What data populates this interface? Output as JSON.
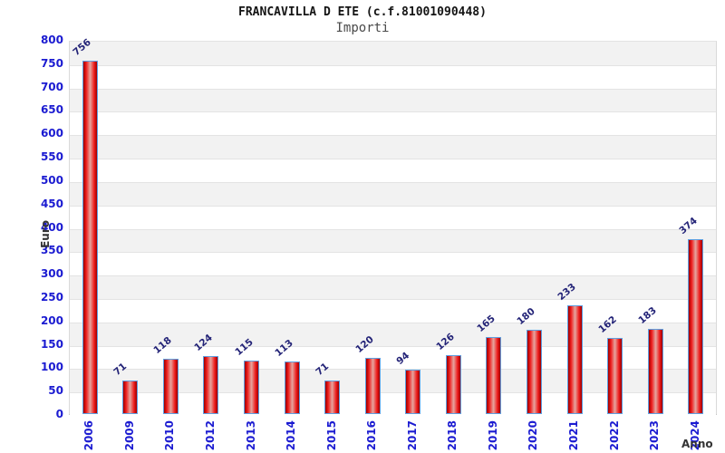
{
  "chart_data": {
    "type": "bar",
    "title": "FRANCAVILLA D ETE (c.f.81001090448)",
    "subtitle": "Importi",
    "categories": [
      "2006",
      "2009",
      "2010",
      "2012",
      "2013",
      "2014",
      "2015",
      "2016",
      "2017",
      "2018",
      "2019",
      "2020",
      "2021",
      "2022",
      "2023",
      "2024"
    ],
    "values": [
      756,
      71,
      118,
      124,
      115,
      113,
      71,
      120,
      94,
      126,
      165,
      180,
      233,
      162,
      183,
      374
    ],
    "xlabel": "Anno",
    "ylabel": "Euro",
    "ylim": [
      0,
      800
    ],
    "y_tick_step": 50,
    "grid": "horizontal-alternating-bands",
    "legend": "none",
    "colors": {
      "bar_border": "#5e9fe0",
      "bar_gradient": [
        "#9b0000",
        "#ee1a1a",
        "#e5a6a0",
        "#ee1a1a",
        "#9b0000"
      ],
      "tick_label": "#1b1bd1",
      "value_label": "#232377",
      "axis_title": "#333333",
      "band_fill": "#f2f2f2",
      "gridline": "#e3e3e3",
      "axis_line": "#b5b5b5",
      "background": "#ffffff"
    }
  }
}
